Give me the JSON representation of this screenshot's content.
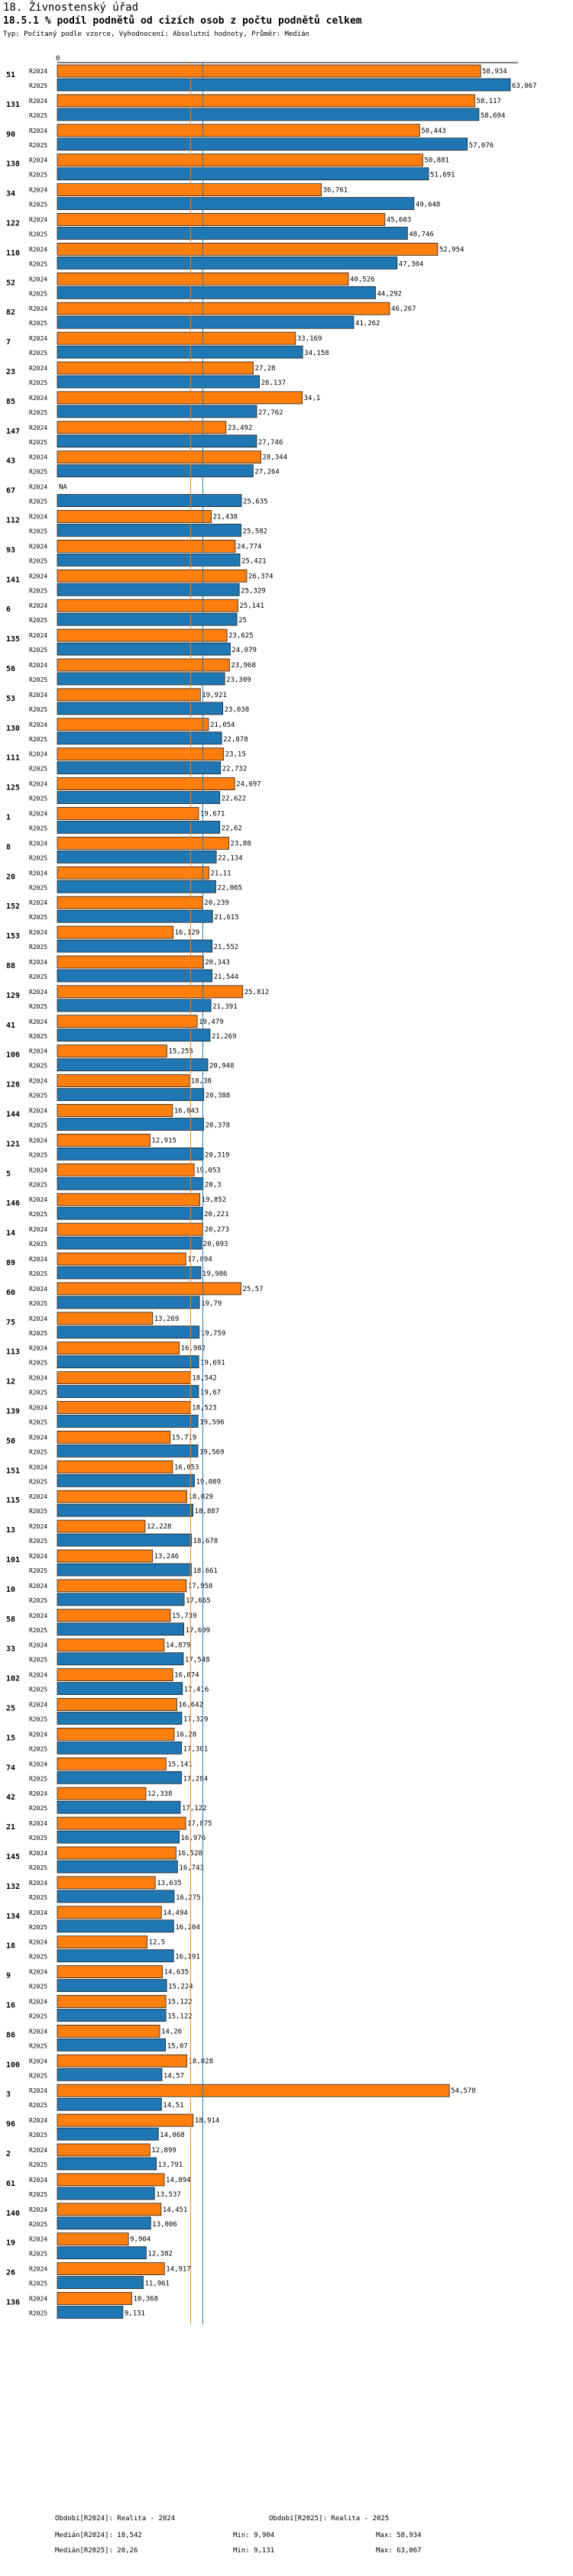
{
  "header": {
    "title": "18. Živnostenský úřad",
    "chart_title": "18.5.1 % podíl podnětů od cizích osob z počtu podnětů celkem",
    "subtitle": "Typ: Počítaný podle vzorce, Vyhodnocení: Absolutní hodnoty, Průměr: Medián"
  },
  "colors": {
    "r2024": "#ff7f0e",
    "r2025": "#1f77b4",
    "median2024": "#ff7f0e",
    "median2025": "#1f77b4"
  },
  "chart_data": {
    "type": "bar",
    "orientation": "horizontal",
    "axis_zero_label": "0",
    "xlim": [
      0,
      63.067
    ],
    "series_names": [
      "R2024",
      "R2025"
    ],
    "categories": [
      {
        "id": "51",
        "v2024": 58.934,
        "v2025": 63.067,
        "l2024": "58,934",
        "l2025": "63,067"
      },
      {
        "id": "131",
        "v2024": 58.117,
        "v2025": 58.694,
        "l2024": "58,117",
        "l2025": "58,694"
      },
      {
        "id": "90",
        "v2024": 50.443,
        "v2025": 57.076,
        "l2024": "50,443",
        "l2025": "57,076"
      },
      {
        "id": "138",
        "v2024": 50.881,
        "v2025": 51.691,
        "l2024": "50,881",
        "l2025": "51,691"
      },
      {
        "id": "34",
        "v2024": 36.761,
        "v2025": 49.648,
        "l2024": "36,761",
        "l2025": "49,648"
      },
      {
        "id": "122",
        "v2024": 45.603,
        "v2025": 48.746,
        "l2024": "45,603",
        "l2025": "48,746"
      },
      {
        "id": "110",
        "v2024": 52.954,
        "v2025": 47.304,
        "l2024": "52,954",
        "l2025": "47,304"
      },
      {
        "id": "52",
        "v2024": 40.526,
        "v2025": 44.292,
        "l2024": "40,526",
        "l2025": "44,292"
      },
      {
        "id": "82",
        "v2024": 46.267,
        "v2025": 41.262,
        "l2024": "46,267",
        "l2025": "41,262"
      },
      {
        "id": "7",
        "v2024": 33.169,
        "v2025": 34.158,
        "l2024": "33,169",
        "l2025": "34,158"
      },
      {
        "id": "23",
        "v2024": 27.28,
        "v2025": 28.137,
        "l2024": "27,28",
        "l2025": "28,137"
      },
      {
        "id": "85",
        "v2024": 34.1,
        "v2025": 27.762,
        "l2024": "34,1",
        "l2025": "27,762"
      },
      {
        "id": "147",
        "v2024": 23.492,
        "v2025": 27.746,
        "l2024": "23,492",
        "l2025": "27,746"
      },
      {
        "id": "43",
        "v2024": 28.344,
        "v2025": 27.264,
        "l2024": "28,344",
        "l2025": "27,264"
      },
      {
        "id": "67",
        "v2024": null,
        "v2025": 25.635,
        "l2024": "NA",
        "l2025": "25,635"
      },
      {
        "id": "112",
        "v2024": 21.438,
        "v2025": 25.582,
        "l2024": "21,438",
        "l2025": "25,582"
      },
      {
        "id": "93",
        "v2024": 24.774,
        "v2025": 25.421,
        "l2024": "24,774",
        "l2025": "25,421"
      },
      {
        "id": "141",
        "v2024": 26.374,
        "v2025": 25.329,
        "l2024": "26,374",
        "l2025": "25,329"
      },
      {
        "id": "6",
        "v2024": 25.141,
        "v2025": 25,
        "l2024": "25,141",
        "l2025": "25"
      },
      {
        "id": "135",
        "v2024": 23.625,
        "v2025": 24.079,
        "l2024": "23,625",
        "l2025": "24,079"
      },
      {
        "id": "56",
        "v2024": 23.968,
        "v2025": 23.309,
        "l2024": "23,968",
        "l2025": "23,309"
      },
      {
        "id": "53",
        "v2024": 19.921,
        "v2025": 23.038,
        "l2024": "19,921",
        "l2025": "23,038"
      },
      {
        "id": "130",
        "v2024": 21.054,
        "v2025": 22.878,
        "l2024": "21,054",
        "l2025": "22,878"
      },
      {
        "id": "111",
        "v2024": 23.15,
        "v2025": 22.732,
        "l2024": "23,15",
        "l2025": "22,732"
      },
      {
        "id": "125",
        "v2024": 24.697,
        "v2025": 22.622,
        "l2024": "24,697",
        "l2025": "22,622"
      },
      {
        "id": "1",
        "v2024": 19.671,
        "v2025": 22.62,
        "l2024": "19,671",
        "l2025": "22,62"
      },
      {
        "id": "8",
        "v2024": 23.88,
        "v2025": 22.134,
        "l2024": "23,88",
        "l2025": "22,134"
      },
      {
        "id": "20",
        "v2024": 21.11,
        "v2025": 22.065,
        "l2024": "21,11",
        "l2025": "22,065"
      },
      {
        "id": "152",
        "v2024": 20.239,
        "v2025": 21.615,
        "l2024": "20,239",
        "l2025": "21,615"
      },
      {
        "id": "153",
        "v2024": 16.129,
        "v2025": 21.552,
        "l2024": "16,129",
        "l2025": "21,552"
      },
      {
        "id": "88",
        "v2024": 20.343,
        "v2025": 21.544,
        "l2024": "20,343",
        "l2025": "21,544"
      },
      {
        "id": "129",
        "v2024": 25.812,
        "v2025": 21.391,
        "l2024": "25,812",
        "l2025": "21,391"
      },
      {
        "id": "41",
        "v2024": 19.479,
        "v2025": 21.269,
        "l2024": "19,479",
        "l2025": "21,269"
      },
      {
        "id": "106",
        "v2024": 15.255,
        "v2025": 20.948,
        "l2024": "15,255",
        "l2025": "20,948"
      },
      {
        "id": "126",
        "v2024": 18.38,
        "v2025": 20.388,
        "l2024": "18,38",
        "l2025": "20,388"
      },
      {
        "id": "144",
        "v2024": 16.043,
        "v2025": 20.378,
        "l2024": "16,043",
        "l2025": "20,378"
      },
      {
        "id": "121",
        "v2024": 12.915,
        "v2025": 20.319,
        "l2024": "12,915",
        "l2025": "20,319"
      },
      {
        "id": "5",
        "v2024": 19.053,
        "v2025": 20.3,
        "l2024": "19,053",
        "l2025": "20,3"
      },
      {
        "id": "146",
        "v2024": 19.852,
        "v2025": 20.221,
        "l2024": "19,852",
        "l2025": "20,221"
      },
      {
        "id": "14",
        "v2024": 20.273,
        "v2025": 20.093,
        "l2024": "20,273",
        "l2025": "20,093"
      },
      {
        "id": "89",
        "v2024": 17.894,
        "v2025": 19.986,
        "l2024": "17,894",
        "l2025": "19,986"
      },
      {
        "id": "60",
        "v2024": 25.57,
        "v2025": 19.79,
        "l2024": "25,57",
        "l2025": "19,79"
      },
      {
        "id": "75",
        "v2024": 13.269,
        "v2025": 19.759,
        "l2024": "13,269",
        "l2025": "19,759"
      },
      {
        "id": "113",
        "v2024": 16.982,
        "v2025": 19.691,
        "l2024": "16,982",
        "l2025": "19,691"
      },
      {
        "id": "12",
        "v2024": 18.542,
        "v2025": 19.67,
        "l2024": "18,542",
        "l2025": "19,67"
      },
      {
        "id": "139",
        "v2024": 18.523,
        "v2025": 19.596,
        "l2024": "18,523",
        "l2025": "19,596"
      },
      {
        "id": "50",
        "v2024": 15.719,
        "v2025": 19.569,
        "l2024": "15,719",
        "l2025": "19,569"
      },
      {
        "id": "151",
        "v2024": 16.053,
        "v2025": 19.089,
        "l2024": "16,053",
        "l2025": "19,089"
      },
      {
        "id": "115",
        "v2024": 18.029,
        "v2025": 18.887,
        "l2024": "18,029",
        "l2025": "18,887"
      },
      {
        "id": "13",
        "v2024": 12.228,
        "v2025": 18.678,
        "l2024": "12,228",
        "l2025": "18,678"
      },
      {
        "id": "101",
        "v2024": 13.246,
        "v2025": 18.661,
        "l2024": "13,246",
        "l2025": "18,661"
      },
      {
        "id": "10",
        "v2024": 17.958,
        "v2025": 17.665,
        "l2024": "17,958",
        "l2025": "17,665"
      },
      {
        "id": "58",
        "v2024": 15.739,
        "v2025": 17.609,
        "l2024": "15,739",
        "l2025": "17,609"
      },
      {
        "id": "33",
        "v2024": 14.879,
        "v2025": 17.548,
        "l2024": "14,879",
        "l2025": "17,548"
      },
      {
        "id": "102",
        "v2024": 16.074,
        "v2025": 17.416,
        "l2024": "16,074",
        "l2025": "17,416"
      },
      {
        "id": "25",
        "v2024": 16.642,
        "v2025": 17.329,
        "l2024": "16,642",
        "l2025": "17,329"
      },
      {
        "id": "15",
        "v2024": 16.28,
        "v2025": 17.301,
        "l2024": "16,28",
        "l2025": "17,301"
      },
      {
        "id": "74",
        "v2024": 15.141,
        "v2025": 17.284,
        "l2024": "15,141",
        "l2025": "17,284"
      },
      {
        "id": "42",
        "v2024": 12.338,
        "v2025": 17.122,
        "l2024": "12,338",
        "l2025": "17,122"
      },
      {
        "id": "21",
        "v2024": 17.875,
        "v2025": 16.976,
        "l2024": "17,875",
        "l2025": "16,976"
      },
      {
        "id": "145",
        "v2024": 16.528,
        "v2025": 16.743,
        "l2024": "16,528",
        "l2025": "16,743"
      },
      {
        "id": "132",
        "v2024": 13.635,
        "v2025": 16.275,
        "l2024": "13,635",
        "l2025": "16,275"
      },
      {
        "id": "134",
        "v2024": 14.494,
        "v2025": 16.204,
        "l2024": "14,494",
        "l2025": "16,204"
      },
      {
        "id": "18",
        "v2024": 12.5,
        "v2025": 16.191,
        "l2024": "12,5",
        "l2025": "16,191"
      },
      {
        "id": "9",
        "v2024": 14.635,
        "v2025": 15.224,
        "l2024": "14,635",
        "l2025": "15,224"
      },
      {
        "id": "16",
        "v2024": 15.122,
        "v2025": 15.122,
        "l2024": "15,122",
        "l2025": "15,122"
      },
      {
        "id": "86",
        "v2024": 14.26,
        "v2025": 15.07,
        "l2024": "14,26",
        "l2025": "15,07"
      },
      {
        "id": "100",
        "v2024": 18.028,
        "v2025": 14.57,
        "l2024": "18,028",
        "l2025": "14,57"
      },
      {
        "id": "3",
        "v2024": 54.578,
        "v2025": 14.51,
        "l2024": "54,578",
        "l2025": "14,51"
      },
      {
        "id": "96",
        "v2024": 18.914,
        "v2025": 14.068,
        "l2024": "18,914",
        "l2025": "14,068"
      },
      {
        "id": "2",
        "v2024": 12.899,
        "v2025": 13.791,
        "l2024": "12,899",
        "l2025": "13,791"
      },
      {
        "id": "61",
        "v2024": 14.894,
        "v2025": 13.537,
        "l2024": "14,894",
        "l2025": "13,537"
      },
      {
        "id": "140",
        "v2024": 14.451,
        "v2025": 13.006,
        "l2024": "14,451",
        "l2025": "13,006"
      },
      {
        "id": "19",
        "v2024": 9.904,
        "v2025": 12.382,
        "l2024": "9,904",
        "l2025": "12,382"
      },
      {
        "id": "26",
        "v2024": 14.917,
        "v2025": 11.961,
        "l2024": "14,917",
        "l2025": "11,961"
      },
      {
        "id": "136",
        "v2024": 10.368,
        "v2025": 9.131,
        "l2024": "10,368",
        "l2025": "9,131"
      }
    ],
    "median_2024": 18.542,
    "median_2025": 20.26
  },
  "legend": {
    "row1_left": "Období[R2024]: Realita - 2024",
    "row1_right": "Období[R2025]: Realita - 2025",
    "row2_median1": "Medián[R2024]: 18,542",
    "row2_min1": "Min: 9,904",
    "row2_max1": "Max: 58,934",
    "row3_median2": "Medián[R2025]: 20,26",
    "row3_min2": "Min: 9,131",
    "row3_max2": "Max: 63,067"
  }
}
